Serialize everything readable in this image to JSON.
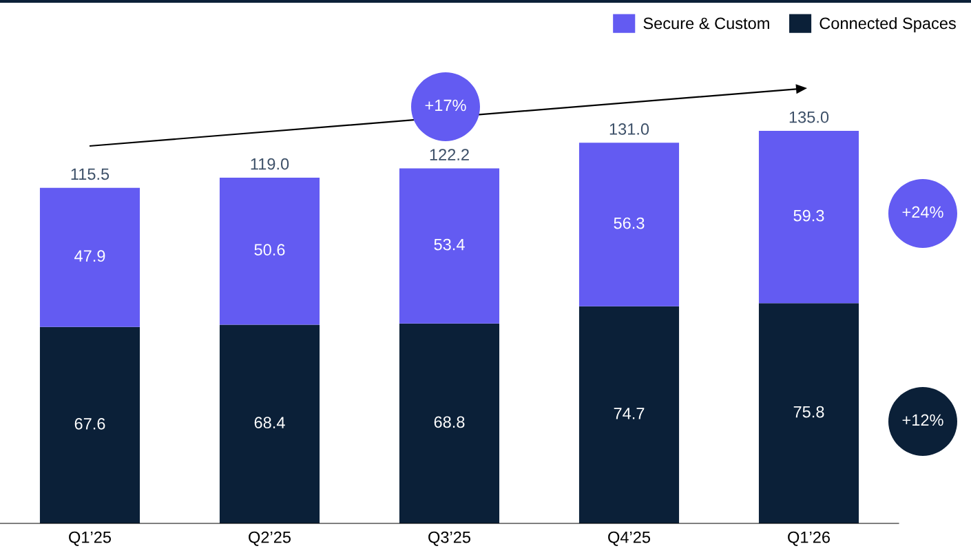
{
  "chart_data": {
    "type": "bar",
    "stacked": true,
    "categories": [
      "Q1’25",
      "Q2’25",
      "Q3’25",
      "Q4’25",
      "Q1’26"
    ],
    "series": [
      {
        "name": "Connected Spaces",
        "color": "#0b2038",
        "values": [
          67.6,
          68.4,
          68.8,
          74.7,
          75.8
        ]
      },
      {
        "name": "Secure & Custom",
        "color": "#635bf2",
        "values": [
          47.9,
          50.6,
          53.4,
          56.3,
          59.3
        ]
      }
    ],
    "totals": [
      "115.5",
      "119.0",
      "122.2",
      "131.0",
      "135.0"
    ],
    "data_labels": true,
    "legend": "top right",
    "annotations": [
      "+17%",
      "+24%",
      "+12%"
    ]
  }
}
